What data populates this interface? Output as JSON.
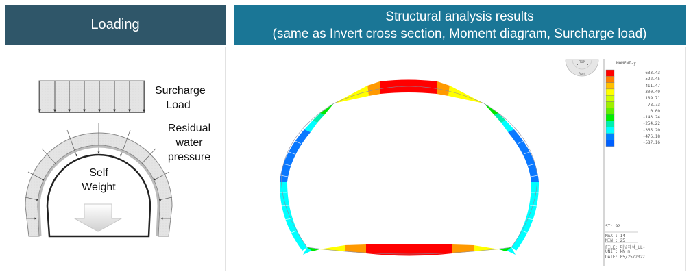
{
  "left": {
    "header": "Loading",
    "labels": {
      "surcharge": [
        "Surcharge",
        "Load"
      ],
      "residual": [
        "Residual",
        "water",
        "pressure"
      ],
      "self_weight": [
        "Self",
        "Weight"
      ]
    }
  },
  "right": {
    "header_line1": "Structural analysis results",
    "header_line2": "(same as Invert cross section, Moment diagram, Surcharge load)",
    "view_cube": {
      "top": "TOP",
      "front": "Front"
    },
    "legend": {
      "title": "MOMENT-y",
      "entries": [
        {
          "value": "633.43",
          "color": "#ff0000"
        },
        {
          "value": "522.45",
          "color": "#ff7f00"
        },
        {
          "value": "411.47",
          "color": "#ffbf00"
        },
        {
          "value": "300.49",
          "color": "#ffff00"
        },
        {
          "value": "189.71",
          "color": "#cfff00"
        },
        {
          "value": "78.73",
          "color": "#9fef00"
        },
        {
          "value": "0.00",
          "color": "#5fef00"
        },
        {
          "value": "-143.24",
          "color": "#00ef00"
        },
        {
          "value": "-254.22",
          "color": "#00efaf"
        },
        {
          "value": "-365.20",
          "color": "#00ffff"
        },
        {
          "value": "-476.18",
          "color": "#0080ff"
        },
        {
          "value": "-587.16",
          "color": "#0060ff"
        }
      ]
    },
    "info": {
      "st": "ST: 92",
      "max": "MAX : 14",
      "min": "MIN : 25",
      "file": "FILE: 터널해석_UL-",
      "unit": "UNIT: kN m",
      "date": "DATE: 05/25/2022"
    }
  }
}
